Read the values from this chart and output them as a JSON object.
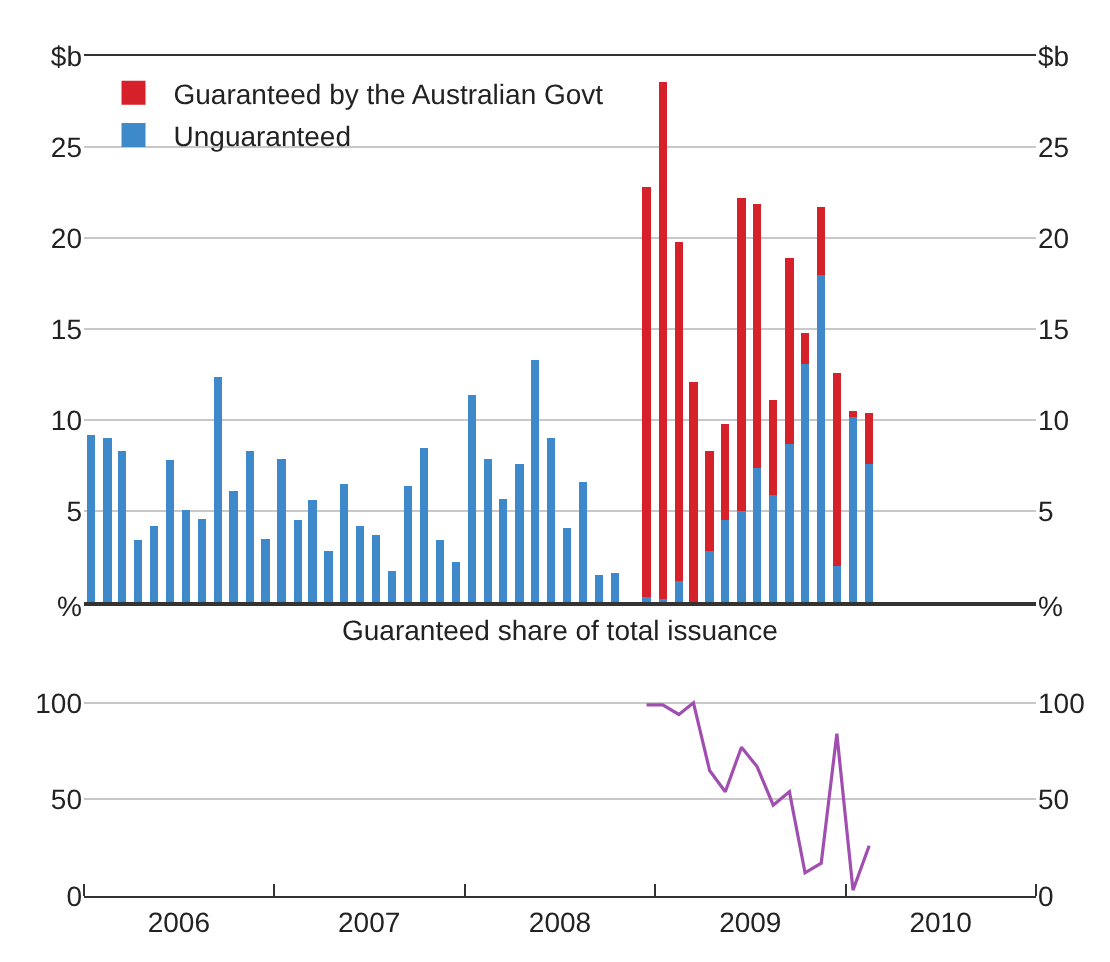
{
  "chart_data": [
    {
      "type": "bar",
      "stacked": true,
      "legend": "top left",
      "grid": "y",
      "tick_labels": "y",
      "x": [
        "2006-01-15",
        "2006-02-15",
        "2006-03-15",
        "2006-04-15",
        "2006-05-15",
        "2006-06-15",
        "2006-07-15",
        "2006-08-15",
        "2006-09-15",
        "2006-10-15",
        "2006-11-15",
        "2006-12-15",
        "2007-01-15",
        "2007-02-15",
        "2007-03-15",
        "2007-04-15",
        "2007-05-15",
        "2007-06-15",
        "2007-07-15",
        "2007-08-15",
        "2007-09-15",
        "2007-10-15",
        "2007-11-15",
        "2007-12-15",
        "2008-01-15",
        "2008-02-15",
        "2008-03-15",
        "2008-04-15",
        "2008-05-15",
        "2008-06-15",
        "2008-07-15",
        "2008-08-15",
        "2008-09-15",
        "2008-10-15",
        "2008-11-15",
        "2008-12-15",
        "2009-01-15",
        "2009-02-15",
        "2009-03-15",
        "2009-04-15",
        "2009-05-15",
        "2009-06-15",
        "2009-07-15",
        "2009-08-15",
        "2009-09-15",
        "2009-10-15",
        "2009-11-15",
        "2009-12-15",
        "2010-01-15",
        "2010-02-15"
      ],
      "xlim": [
        "2006-01-01",
        "2011-01-01"
      ],
      "ylim": [
        0,
        30
      ],
      "yticks": [
        {
          "value": 0,
          "label": null
        },
        5,
        10,
        15,
        20,
        25,
        {
          "value": 30,
          "label": "$b"
        }
      ],
      "y2lim": [
        0,
        30
      ],
      "y2ticks": [
        {
          "value": 0,
          "label": null
        },
        5,
        10,
        15,
        20,
        25,
        {
          "value": 30,
          "label": "$b"
        }
      ],
      "series": [
        {
          "name": "Unguaranteed",
          "color": "#3d89c9",
          "values": [
            9.2,
            9.0,
            8.3,
            3.4,
            4.2,
            7.8,
            5.1,
            4.6,
            12.4,
            6.1,
            8.3,
            3.5,
            7.9,
            4.5,
            5.6,
            2.8,
            6.5,
            4.2,
            3.7,
            1.7,
            6.4,
            8.5,
            3.4,
            2.2,
            11.4,
            7.9,
            5.7,
            7.6,
            13.3,
            9.0,
            4.1,
            6.6,
            1.5,
            1.6,
            null,
            0.3,
            0.2,
            1.2,
            0,
            2.8,
            4.5,
            5.0,
            7.4,
            5.9,
            8.7,
            13.1,
            18.0,
            2.0,
            10.2,
            7.6
          ]
        },
        {
          "name": "Guaranteed by the Australian Govt",
          "color": "#d6202a",
          "values": [
            null,
            null,
            null,
            null,
            null,
            null,
            null,
            null,
            null,
            null,
            null,
            null,
            null,
            null,
            null,
            null,
            null,
            null,
            null,
            null,
            null,
            null,
            null,
            null,
            null,
            null,
            null,
            null,
            null,
            null,
            null,
            null,
            null,
            null,
            null,
            22.5,
            28.4,
            18.6,
            12.1,
            5.5,
            5.3,
            17.2,
            14.5,
            5.2,
            10.2,
            1.7,
            3.7,
            10.6,
            0.3,
            2.8
          ]
        }
      ]
    },
    {
      "type": "line",
      "title": "Guaranteed share of total issuance",
      "grid": "y",
      "xlim": [
        "2006-01-01",
        "2011-01-01"
      ],
      "xticks": [
        {
          "value": "2006-01-01",
          "label": null
        },
        {
          "value": "2006-07-02",
          "label": "2006"
        },
        {
          "value": "2007-01-01",
          "label": null
        },
        {
          "value": "2007-07-02",
          "label": "2007"
        },
        {
          "value": "2008-01-01",
          "label": null
        },
        {
          "value": "2008-07-02",
          "label": "2008"
        },
        {
          "value": "2009-01-01",
          "label": null
        },
        {
          "value": "2009-07-02",
          "label": "2009"
        },
        {
          "value": "2010-01-01",
          "label": null
        },
        {
          "value": "2010-07-02",
          "label": "2010"
        },
        {
          "value": "2011-01-01",
          "label": null
        }
      ],
      "ylim": [
        0,
        150
      ],
      "yticks": [
        0,
        50,
        100,
        {
          "value": 150,
          "label": "%"
        }
      ],
      "y2lim": [
        0,
        150
      ],
      "y2ticks": [
        0,
        50,
        100,
        {
          "value": 150,
          "label": "%"
        }
      ],
      "series": [
        {
          "color": "#a04fb0",
          "x": [
            "2008-12-15",
            "2009-01-15",
            "2009-02-15",
            "2009-03-15",
            "2009-04-15",
            "2009-05-15",
            "2009-06-15",
            "2009-07-15",
            "2009-08-15",
            "2009-09-15",
            "2009-10-15",
            "2009-11-15",
            "2009-12-15",
            "2010-01-15",
            "2010-02-15"
          ],
          "values": [
            99,
            99,
            94,
            100,
            65,
            54,
            77,
            67,
            47,
            54,
            12,
            17,
            84,
            3,
            26
          ]
        }
      ]
    }
  ]
}
